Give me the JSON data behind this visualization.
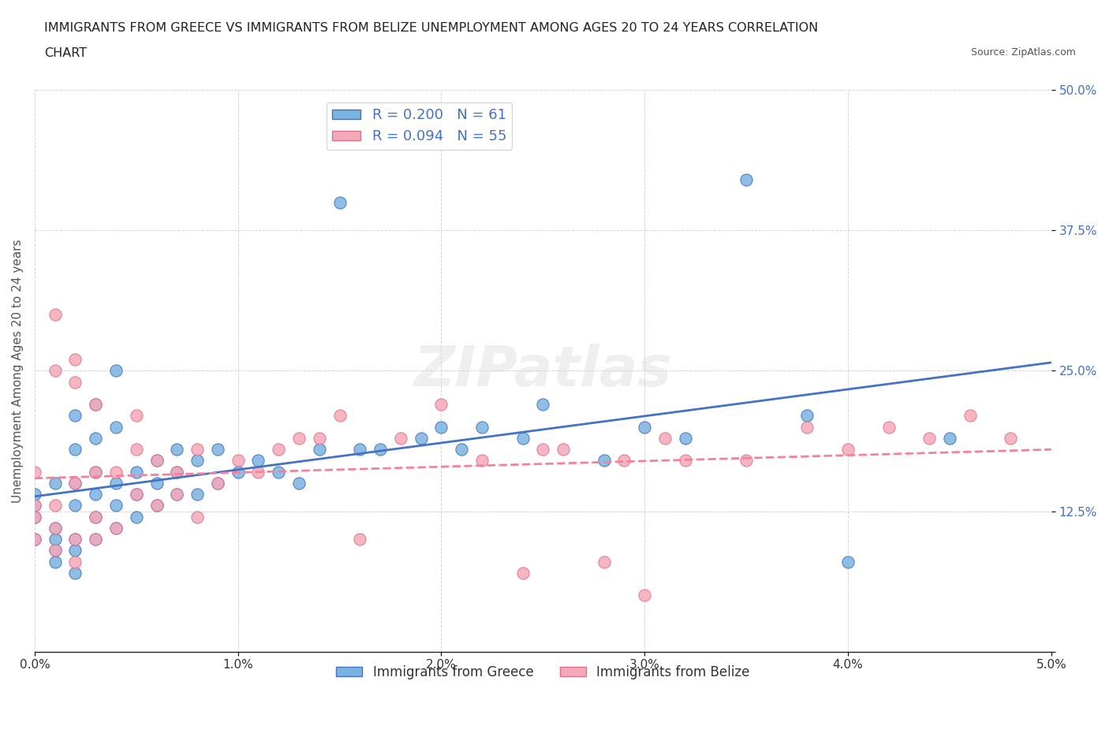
{
  "title_line1": "IMMIGRANTS FROM GREECE VS IMMIGRANTS FROM BELIZE UNEMPLOYMENT AMONG AGES 20 TO 24 YEARS CORRELATION",
  "title_line2": "CHART",
  "source_text": "Source: ZipAtlas.com",
  "xlabel": "",
  "ylabel": "Unemployment Among Ages 20 to 24 years",
  "xlim": [
    0.0,
    0.05
  ],
  "ylim": [
    0.0,
    0.5
  ],
  "xticks": [
    0.0,
    0.01,
    0.02,
    0.03,
    0.04,
    0.05
  ],
  "xticklabels": [
    "0.0%",
    "1.0%",
    "2.0%",
    "3.0%",
    "4.0%",
    "5.0%"
  ],
  "yticks": [
    0.0,
    0.125,
    0.25,
    0.375,
    0.5
  ],
  "yticklabels": [
    "",
    "12.5%",
    "25.0%",
    "37.5%",
    "50.0%"
  ],
  "legend1_label": "R = 0.200   N = 61",
  "legend2_label": "R = 0.094   N = 55",
  "legend_bottom_label1": "Immigrants from Greece",
  "legend_bottom_label2": "Immigrants from Belize",
  "watermark": "ZIPatlas",
  "blue_color": "#7ab3e0",
  "pink_color": "#f4a9b8",
  "blue_line_color": "#4472c4",
  "pink_line_color": "#f4829a",
  "r_blue": 0.2,
  "n_blue": 61,
  "r_pink": 0.094,
  "n_pink": 55,
  "blue_scatter_x": [
    0.0,
    0.0,
    0.0,
    0.0,
    0.001,
    0.001,
    0.001,
    0.001,
    0.001,
    0.002,
    0.002,
    0.002,
    0.002,
    0.002,
    0.002,
    0.002,
    0.003,
    0.003,
    0.003,
    0.003,
    0.003,
    0.003,
    0.004,
    0.004,
    0.004,
    0.004,
    0.004,
    0.005,
    0.005,
    0.005,
    0.006,
    0.006,
    0.006,
    0.007,
    0.007,
    0.007,
    0.008,
    0.008,
    0.009,
    0.009,
    0.01,
    0.011,
    0.012,
    0.013,
    0.014,
    0.015,
    0.016,
    0.017,
    0.019,
    0.02,
    0.021,
    0.022,
    0.024,
    0.025,
    0.028,
    0.03,
    0.032,
    0.035,
    0.038,
    0.04,
    0.045
  ],
  "blue_scatter_y": [
    0.1,
    0.12,
    0.13,
    0.14,
    0.08,
    0.09,
    0.1,
    0.11,
    0.15,
    0.07,
    0.09,
    0.1,
    0.13,
    0.15,
    0.18,
    0.21,
    0.1,
    0.12,
    0.14,
    0.16,
    0.19,
    0.22,
    0.11,
    0.13,
    0.15,
    0.2,
    0.25,
    0.12,
    0.14,
    0.16,
    0.13,
    0.15,
    0.17,
    0.14,
    0.16,
    0.18,
    0.14,
    0.17,
    0.15,
    0.18,
    0.16,
    0.17,
    0.16,
    0.15,
    0.18,
    0.4,
    0.18,
    0.18,
    0.19,
    0.2,
    0.18,
    0.2,
    0.19,
    0.22,
    0.17,
    0.2,
    0.19,
    0.42,
    0.21,
    0.08,
    0.19
  ],
  "pink_scatter_x": [
    0.0,
    0.0,
    0.0,
    0.0,
    0.001,
    0.001,
    0.001,
    0.001,
    0.001,
    0.002,
    0.002,
    0.002,
    0.002,
    0.002,
    0.003,
    0.003,
    0.003,
    0.003,
    0.004,
    0.004,
    0.005,
    0.005,
    0.005,
    0.006,
    0.006,
    0.007,
    0.007,
    0.008,
    0.008,
    0.009,
    0.01,
    0.011,
    0.012,
    0.013,
    0.014,
    0.015,
    0.016,
    0.018,
    0.02,
    0.022,
    0.024,
    0.025,
    0.026,
    0.028,
    0.029,
    0.03,
    0.031,
    0.032,
    0.035,
    0.038,
    0.04,
    0.042,
    0.044,
    0.046,
    0.048
  ],
  "pink_scatter_y": [
    0.1,
    0.12,
    0.13,
    0.16,
    0.09,
    0.11,
    0.13,
    0.25,
    0.3,
    0.08,
    0.1,
    0.15,
    0.24,
    0.26,
    0.1,
    0.12,
    0.16,
    0.22,
    0.11,
    0.16,
    0.14,
    0.18,
    0.21,
    0.13,
    0.17,
    0.14,
    0.16,
    0.12,
    0.18,
    0.15,
    0.17,
    0.16,
    0.18,
    0.19,
    0.19,
    0.21,
    0.1,
    0.19,
    0.22,
    0.17,
    0.07,
    0.18,
    0.18,
    0.08,
    0.17,
    0.05,
    0.19,
    0.17,
    0.17,
    0.2,
    0.18,
    0.2,
    0.19,
    0.21,
    0.19
  ]
}
